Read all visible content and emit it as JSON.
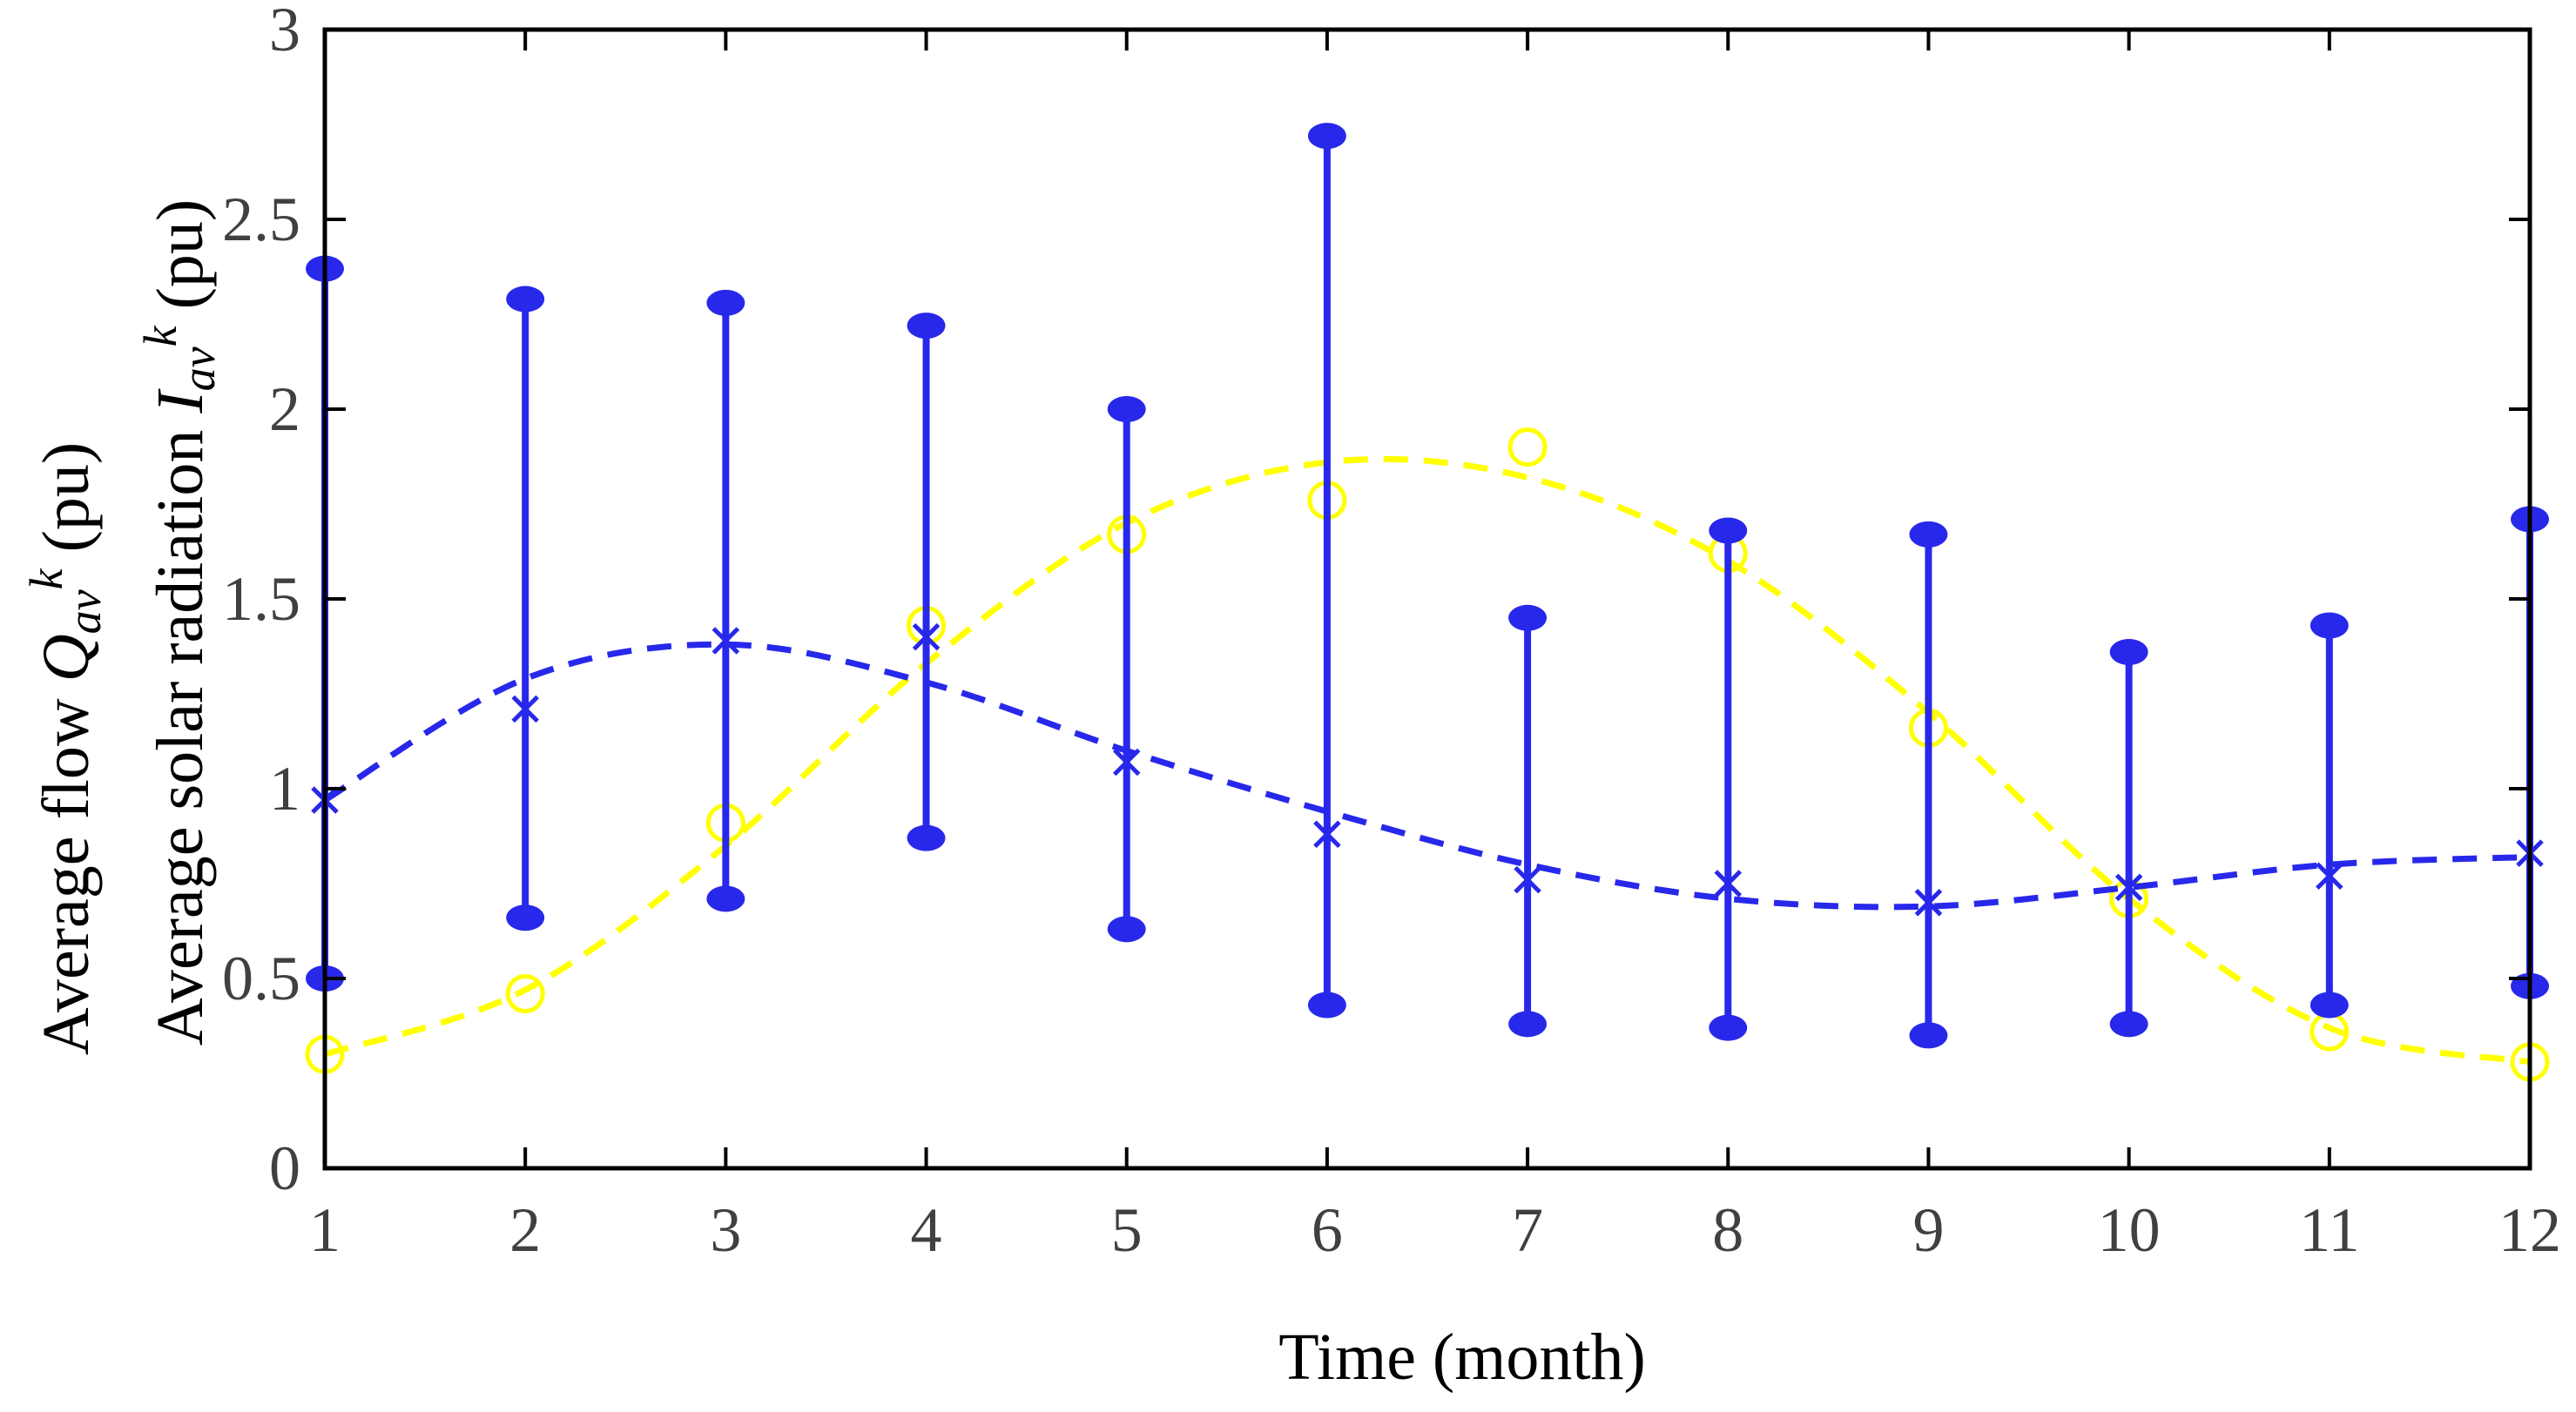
{
  "chart_data": {
    "type": "line",
    "title": "",
    "xlabel": "Time (month)",
    "ylabel_flow": {
      "pre": "Average flow ",
      "sym": "Q",
      "sub": "av",
      "sup": "k",
      "post": " (pu)"
    },
    "ylabel_solar": {
      "pre": "Average solar radiation ",
      "sym": "I",
      "sub": "av",
      "sup": "k",
      "post": " (pu)"
    },
    "x": [
      1,
      2,
      3,
      4,
      5,
      6,
      7,
      8,
      9,
      10,
      11,
      12
    ],
    "xticks": [
      "1",
      "2",
      "3",
      "4",
      "5",
      "6",
      "7",
      "8",
      "9",
      "10",
      "11",
      "12"
    ],
    "yticks": [
      "0",
      "0.5",
      "1",
      "1.5",
      "2",
      "2.5",
      "3"
    ],
    "xlim": [
      1,
      12
    ],
    "ylim": [
      0,
      3
    ],
    "grid": false,
    "series": [
      {
        "name": "Average flow",
        "color": "#2828EB",
        "marker": "x",
        "linestyle": "dashed",
        "values": [
          0.97,
          1.21,
          1.39,
          1.4,
          1.07,
          0.88,
          0.76,
          0.75,
          0.7,
          0.74,
          0.77,
          0.83
        ],
        "trend": [
          0.97,
          1.29,
          1.38,
          1.28,
          1.1,
          0.94,
          0.8,
          0.71,
          0.69,
          0.74,
          0.8,
          0.82
        ],
        "error_min": [
          0.5,
          0.66,
          0.71,
          0.87,
          0.63,
          0.43,
          0.38,
          0.37,
          0.35,
          0.38,
          0.43,
          0.48
        ],
        "error_max": [
          2.37,
          2.29,
          2.28,
          2.22,
          2.0,
          2.72,
          1.45,
          1.68,
          1.67,
          1.36,
          1.43,
          1.71
        ]
      },
      {
        "name": "Average solar radiation",
        "color": "#FFFF00",
        "marker": "o",
        "linestyle": "dashed",
        "values": [
          0.3,
          0.46,
          0.91,
          1.43,
          1.67,
          1.76,
          1.9,
          1.62,
          1.16,
          0.71,
          0.36,
          0.28
        ],
        "trend": [
          0.3,
          0.47,
          0.85,
          1.33,
          1.7,
          1.86,
          1.82,
          1.6,
          1.2,
          0.71,
          0.37,
          0.28
        ]
      }
    ]
  }
}
